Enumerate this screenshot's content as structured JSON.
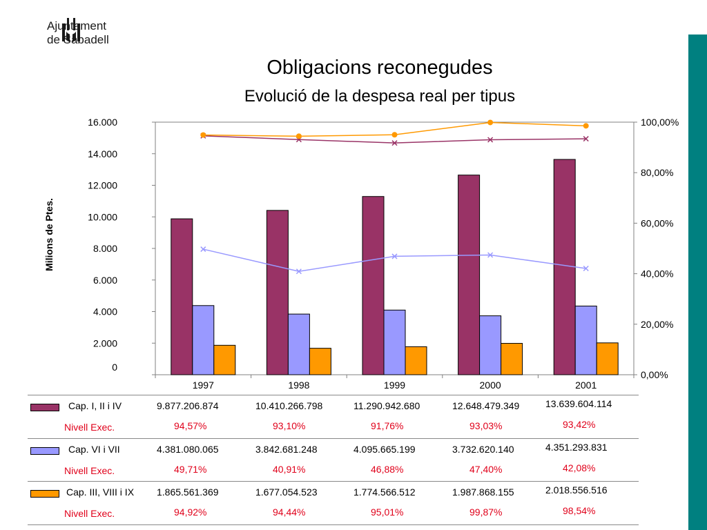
{
  "header": {
    "logo_line1": "Ajuntament",
    "logo_line2": "de Sabadell",
    "title": "Obligacions reconegudes",
    "subtitle": "Evolució de la despesa real per tipus"
  },
  "colors": {
    "cap1": "#993366",
    "cap2": "#9999ff",
    "cap3": "#ff9900",
    "line_cap1": "#993366",
    "line_cap2": "#9999ff",
    "line_cap3": "#ff9900",
    "side_bar": "#008080",
    "pct_text": "#e0001a"
  },
  "chart_data": {
    "type": "bar",
    "title": "Obligacions reconegudes",
    "subtitle": "Evolució de la despesa real per tipus",
    "ylabel": "Milions de Ptes.",
    "categories": [
      "1997",
      "1998",
      "1999",
      "2000",
      "2001"
    ],
    "ylim": [
      0,
      16000
    ],
    "y_ticks": [
      "0",
      "2.000",
      "4.000",
      "6.000",
      "8.000",
      "10.000",
      "12.000",
      "14.000",
      "16.000"
    ],
    "y_tick_values": [
      0,
      2000,
      4000,
      6000,
      8000,
      10000,
      12000,
      14000,
      16000
    ],
    "y2lim": [
      0,
      100
    ],
    "y2_ticks": [
      "0,00%",
      "20,00%",
      "40,00%",
      "60,00%",
      "80,00%",
      "100,00%"
    ],
    "y2_tick_values": [
      0,
      20,
      40,
      60,
      80,
      100
    ],
    "series": [
      {
        "name": "Cap. I, II i IV",
        "values": [
          9877.2,
          10410.3,
          11290.9,
          12648.5,
          13639.6
        ]
      },
      {
        "name": "Cap. VI i VII",
        "values": [
          4381.1,
          3842.7,
          4095.7,
          3732.6,
          4351.3
        ]
      },
      {
        "name": "Cap. III, VIII i IX",
        "values": [
          1865.6,
          1677.1,
          1774.6,
          1987.9,
          2018.6
        ]
      }
    ],
    "line_series": [
      {
        "name": "Nivell Exec.",
        "values": [
          94.57,
          93.1,
          91.76,
          93.03,
          93.42
        ]
      },
      {
        "name": "Nivell Exec.",
        "values": [
          49.71,
          40.91,
          46.88,
          47.4,
          42.08
        ]
      },
      {
        "name": "Nivell Exec.",
        "values": [
          94.92,
          94.44,
          95.01,
          99.87,
          98.54
        ]
      }
    ]
  },
  "table": {
    "rows": [
      {
        "label": "Cap. I, II i IV",
        "values": [
          "9.877.206.874",
          "10.410.266.798",
          "11.290.942.680",
          "12.648.479.349",
          "13.639.604.114"
        ],
        "nivell_label": "Nivell Exec.",
        "pcts": [
          "94,57%",
          "93,10%",
          "91,76%",
          "93,03%",
          "93,42%"
        ]
      },
      {
        "label": "Cap. VI i VII",
        "values": [
          "4.381.080.065",
          "3.842.681.248",
          "4.095.665.199",
          "3.732.620.140",
          "4.351.293.831"
        ],
        "nivell_label": "Nivell Exec.",
        "pcts": [
          "49,71%",
          "40,91%",
          "46,88%",
          "47,40%",
          "42,08%"
        ]
      },
      {
        "label": "Cap. III, VIII i IX",
        "values": [
          "1.865.561.369",
          "1.677.054.523",
          "1.774.566.512",
          "1.987.868.155",
          "2.018.556.516"
        ],
        "nivell_label": "Nivell Exec.",
        "pcts": [
          "94,92%",
          "94,44%",
          "95,01%",
          "99,87%",
          "98,54%"
        ]
      }
    ]
  }
}
